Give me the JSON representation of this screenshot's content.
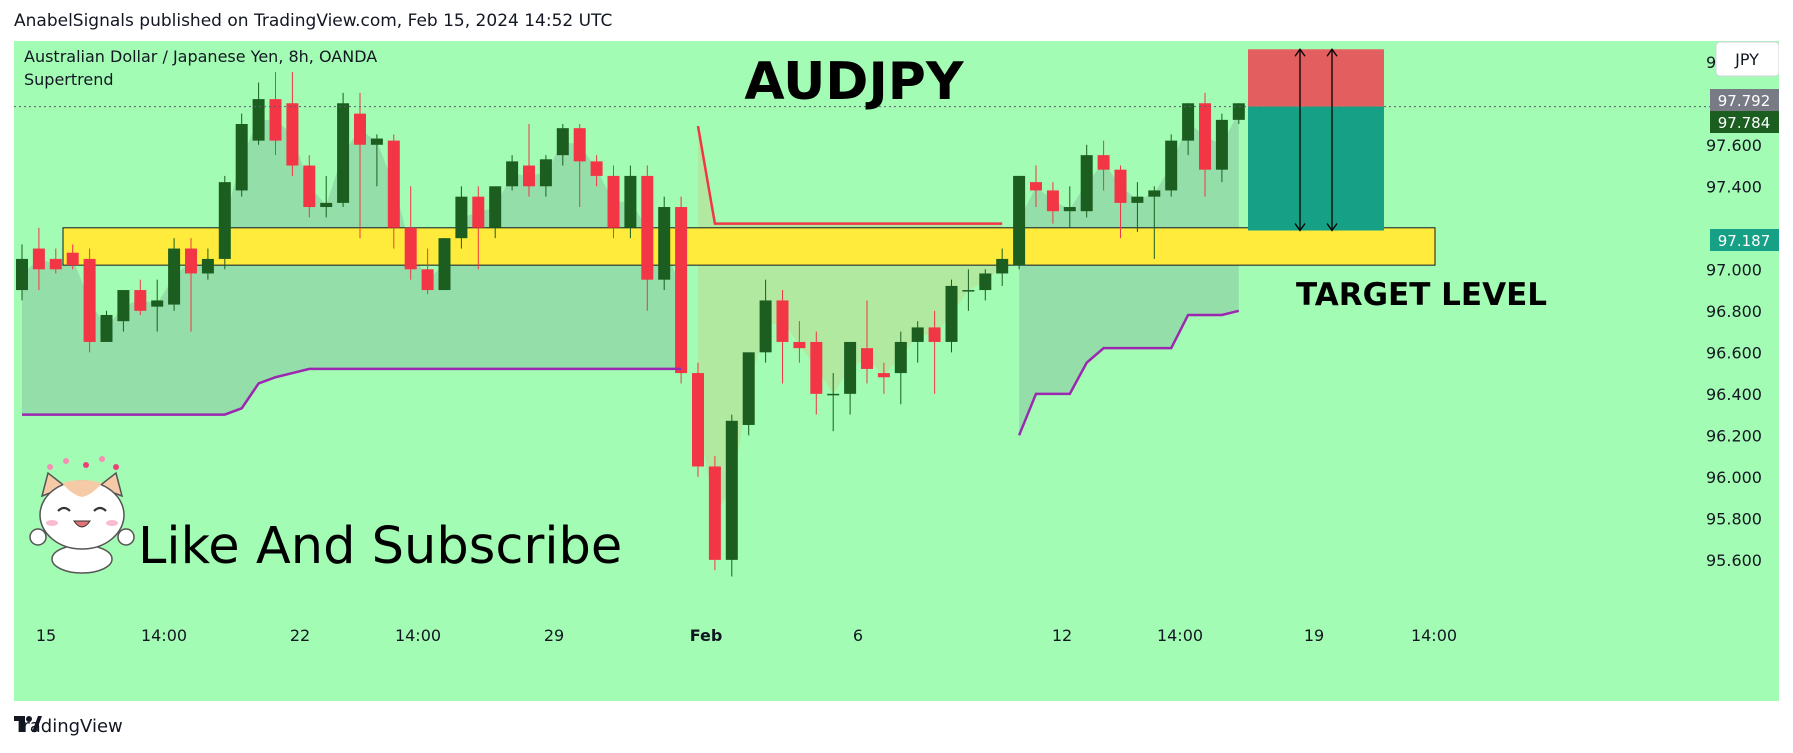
{
  "header": {
    "publisher_line": "AnabelSignals published on TradingView.com, Feb 15, 2024 14:52 UTC"
  },
  "footer": {
    "brand": "TradingView",
    "logo_icon": "tradingview-logo-icon"
  },
  "chart": {
    "symbol_line": "Australian Dollar / Japanese Yen, 8h, OANDA",
    "indicator": "Supertrend",
    "title": "AUDJPY",
    "currency_badge": "JPY",
    "target_label": "TARGET LEVEL",
    "cta_text": "Like And Subscribe",
    "mascot_icon": "cat-mascot-icon",
    "price_labels": {
      "top_label": "97.792",
      "current": "97.784",
      "target": "97.187"
    },
    "colors": {
      "background": "#a2fcb3",
      "bull": "#1b5e20",
      "bear": "#f23645",
      "zone": "#ffeb3b",
      "supertrend_up": "#9c27b0",
      "supertrend_down": "#f23645",
      "stop_box": "#e35f5f",
      "target_box": "#16a085"
    }
  },
  "chart_data": {
    "type": "candlestick",
    "symbol": "AUDJPY",
    "timeframe": "8h",
    "y_ticks": [
      "98.000",
      "97.600",
      "97.400",
      "97.000",
      "96.800",
      "96.600",
      "96.400",
      "96.200",
      "96.000",
      "95.800",
      "95.600"
    ],
    "x_ticks": [
      "15",
      "14:00",
      "22",
      "14:00",
      "29",
      "Feb",
      "6",
      "12",
      "14:00",
      "19",
      "14:00"
    ],
    "ylim": [
      95.45,
      98.1
    ],
    "candles": [
      [
        96.9,
        97.12,
        97.05,
        96.85
      ],
      [
        97.1,
        97.2,
        97.0,
        96.9
      ],
      [
        97.05,
        97.1,
        97.0,
        96.98
      ],
      [
        97.08,
        97.12,
        97.02,
        97.0
      ],
      [
        97.05,
        97.1,
        96.65,
        96.6
      ],
      [
        96.65,
        96.8,
        96.78,
        96.65
      ],
      [
        96.75,
        96.9,
        96.9,
        96.7
      ],
      [
        96.9,
        96.95,
        96.8,
        96.78
      ],
      [
        96.82,
        96.95,
        96.85,
        96.7
      ],
      [
        96.83,
        97.15,
        97.1,
        96.8
      ],
      [
        97.1,
        97.15,
        96.98,
        96.7
      ],
      [
        96.98,
        97.1,
        97.05,
        96.95
      ],
      [
        97.05,
        97.45,
        97.42,
        97.0
      ],
      [
        97.38,
        97.75,
        97.7,
        97.35
      ],
      [
        97.62,
        97.9,
        97.82,
        97.6
      ],
      [
        97.82,
        97.95,
        97.62,
        97.55
      ],
      [
        97.8,
        97.95,
        97.5,
        97.45
      ],
      [
        97.5,
        97.55,
        97.3,
        97.25
      ],
      [
        97.3,
        97.45,
        97.32,
        97.25
      ],
      [
        97.32,
        97.85,
        97.8,
        97.3
      ],
      [
        97.75,
        97.85,
        97.6,
        97.15
      ],
      [
        97.6,
        97.65,
        97.63,
        97.4
      ],
      [
        97.62,
        97.65,
        97.2,
        97.1
      ],
      [
        97.2,
        97.4,
        97.0,
        96.95
      ],
      [
        97.0,
        97.1,
        96.9,
        96.88
      ],
      [
        96.9,
        97.15,
        97.15,
        96.9
      ],
      [
        97.15,
        97.4,
        97.35,
        97.1
      ],
      [
        97.35,
        97.4,
        97.2,
        97.0
      ],
      [
        97.2,
        97.3,
        97.4,
        97.15
      ],
      [
        97.4,
        97.55,
        97.52,
        97.38
      ],
      [
        97.5,
        97.7,
        97.4,
        97.35
      ],
      [
        97.4,
        97.55,
        97.53,
        97.35
      ],
      [
        97.55,
        97.7,
        97.68,
        97.5
      ],
      [
        97.68,
        97.7,
        97.52,
        97.3
      ],
      [
        97.52,
        97.55,
        97.45,
        97.4
      ],
      [
        97.45,
        97.5,
        97.2,
        97.15
      ],
      [
        97.2,
        97.5,
        97.45,
        97.15
      ],
      [
        97.45,
        97.5,
        96.95,
        96.8
      ],
      [
        96.95,
        97.35,
        97.3,
        96.9
      ],
      [
        97.3,
        97.35,
        96.5,
        96.45
      ],
      [
        96.5,
        96.55,
        96.05,
        96.0
      ],
      [
        96.05,
        96.1,
        95.6,
        95.55
      ],
      [
        95.6,
        96.3,
        96.27,
        95.52
      ],
      [
        96.25,
        96.6,
        96.6,
        96.2
      ],
      [
        96.6,
        96.95,
        96.85,
        96.55
      ],
      [
        96.85,
        96.9,
        96.65,
        96.45
      ],
      [
        96.65,
        96.75,
        96.62,
        96.55
      ],
      [
        96.65,
        96.7,
        96.4,
        96.3
      ],
      [
        96.4,
        96.5,
        96.4,
        96.22
      ],
      [
        96.4,
        96.65,
        96.65,
        96.3
      ],
      [
        96.62,
        96.85,
        96.52,
        96.45
      ],
      [
        96.5,
        96.55,
        96.48,
        96.4
      ],
      [
        96.5,
        96.7,
        96.65,
        96.35
      ],
      [
        96.65,
        96.75,
        96.72,
        96.55
      ],
      [
        96.72,
        96.8,
        96.65,
        96.4
      ],
      [
        96.65,
        96.95,
        96.92,
        96.6
      ],
      [
        96.9,
        97.0,
        96.9,
        96.8
      ],
      [
        96.9,
        97.0,
        96.98,
        96.85
      ],
      [
        96.98,
        97.1,
        97.05,
        96.92
      ],
      [
        97.02,
        97.45,
        97.45,
        97.0
      ],
      [
        97.42,
        97.5,
        97.38,
        97.3
      ],
      [
        97.38,
        97.42,
        97.28,
        97.22
      ],
      [
        97.28,
        97.4,
        97.3,
        97.2
      ],
      [
        97.28,
        97.6,
        97.55,
        97.25
      ],
      [
        97.55,
        97.62,
        97.48,
        97.38
      ],
      [
        97.48,
        97.5,
        97.32,
        97.15
      ],
      [
        97.32,
        97.42,
        97.35,
        97.18
      ],
      [
        97.35,
        97.4,
        97.38,
        97.05
      ],
      [
        97.38,
        97.65,
        97.62,
        97.35
      ],
      [
        97.62,
        97.8,
        97.8,
        97.55
      ],
      [
        97.8,
        97.85,
        97.48,
        97.35
      ],
      [
        97.48,
        97.75,
        97.72,
        97.42
      ],
      [
        97.72,
        97.8,
        97.8,
        97.7
      ]
    ],
    "series": [
      {
        "name": "Supertrend",
        "values": [
          96.3,
          96.3,
          96.3,
          96.3,
          96.3,
          96.3,
          96.3,
          96.3,
          96.3,
          96.3,
          96.3,
          96.3,
          96.3,
          96.33,
          96.45,
          96.48,
          96.5,
          96.52,
          96.52,
          96.52,
          96.52,
          96.52,
          96.52,
          96.52,
          96.52,
          96.52,
          96.52,
          96.52,
          96.52,
          96.52,
          96.52,
          96.52,
          96.52,
          96.52,
          96.52,
          96.52,
          96.52,
          96.52,
          96.52,
          96.52,
          97.69,
          97.22,
          97.22,
          97.22,
          97.22,
          97.22,
          97.22,
          97.22,
          97.22,
          97.22,
          97.22,
          97.22,
          97.22,
          97.22,
          97.22,
          97.22,
          97.22,
          97.22,
          97.22,
          96.2,
          96.4,
          96.4,
          96.4,
          96.55,
          96.62,
          96.62,
          96.62,
          96.62,
          96.62,
          96.78,
          96.78,
          96.78,
          96.8
        ]
      }
    ],
    "zone": [
      97.02,
      97.2
    ],
    "position": {
      "entry": 97.784,
      "stop": 98.06,
      "target": 97.187
    }
  }
}
